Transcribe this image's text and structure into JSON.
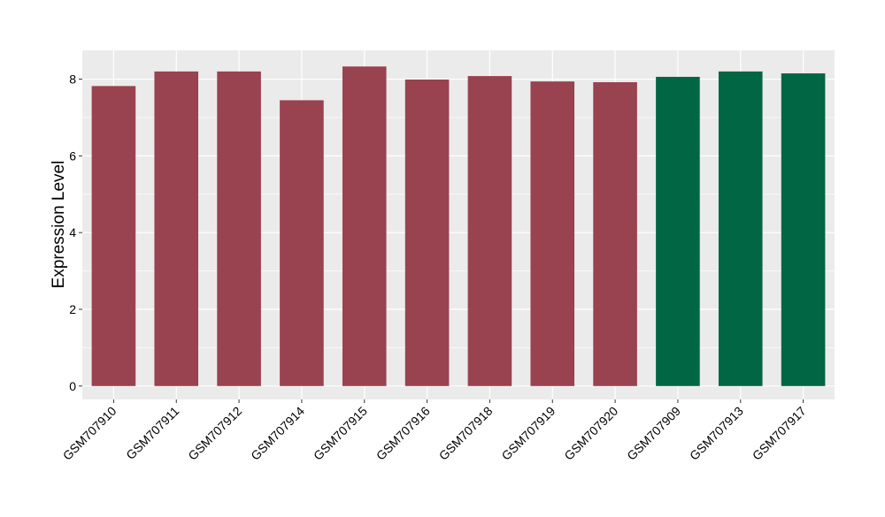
{
  "chart_data": {
    "type": "bar",
    "title": "",
    "xlabel": "",
    "ylabel": "Expression Level",
    "ylim": [
      -0.35,
      8.75
    ],
    "yticks": [
      0,
      2,
      4,
      6,
      8
    ],
    "grid": true,
    "legend": "none",
    "categories": [
      "GSM707910",
      "GSM707911",
      "GSM707912",
      "GSM707914",
      "GSM707915",
      "GSM707916",
      "GSM707918",
      "GSM707919",
      "GSM707920",
      "GSM707909",
      "GSM707913",
      "GSM707917"
    ],
    "values": [
      7.82,
      8.2,
      8.2,
      7.45,
      8.33,
      7.99,
      8.08,
      7.94,
      7.92,
      8.06,
      8.2,
      8.15
    ],
    "groups": [
      0,
      0,
      0,
      0,
      0,
      0,
      0,
      0,
      0,
      1,
      1,
      1
    ],
    "colors": {
      "group_0": "#994250",
      "group_1": "#006643",
      "panel_background": "#ebebeb",
      "grid_major": "#ffffff",
      "axis_text": "#000000"
    }
  }
}
